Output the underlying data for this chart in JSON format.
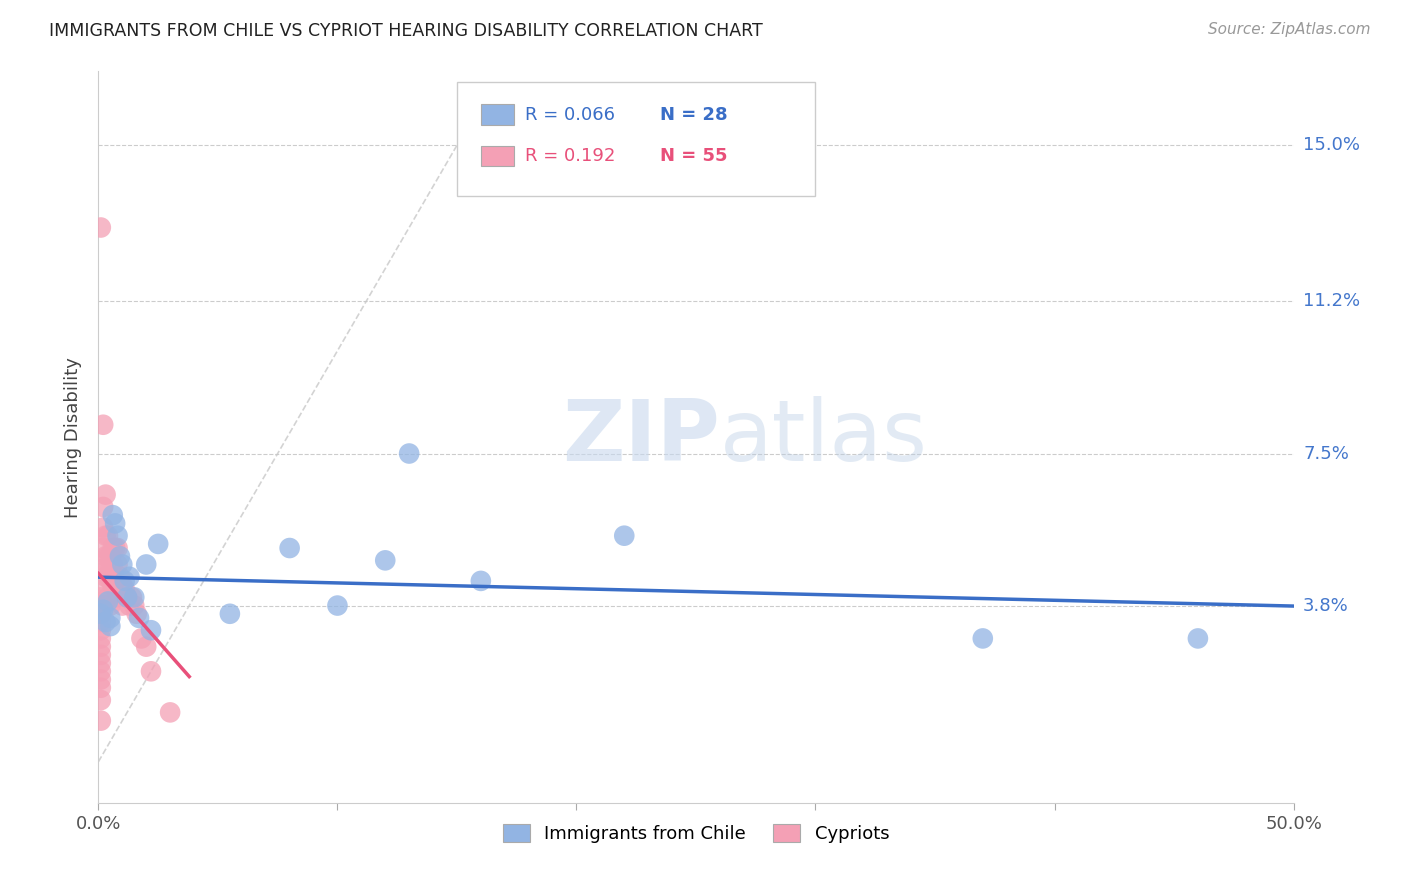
{
  "title": "IMMIGRANTS FROM CHILE VS CYPRIOT HEARING DISABILITY CORRELATION CHART",
  "source": "Source: ZipAtlas.com",
  "ylabel": "Hearing Disability",
  "ytick_labels": [
    "3.8%",
    "7.5%",
    "11.2%",
    "15.0%"
  ],
  "ytick_values": [
    0.038,
    0.075,
    0.112,
    0.15
  ],
  "xlim": [
    0.0,
    0.5
  ],
  "ylim": [
    -0.01,
    0.168
  ],
  "legend1_label": "Immigrants from Chile",
  "legend2_label": "Cypriots",
  "R1": "0.066",
  "N1": "28",
  "R2": "0.192",
  "N2": "55",
  "color_chile": "#92b4e3",
  "color_cyprus": "#f4a0b5",
  "color_chile_line": "#3a6ec7",
  "color_cyprus_line": "#e8507a",
  "color_diagonal": "#c8c8c8",
  "watermark_zip": "ZIP",
  "watermark_atlas": "atlas",
  "chile_x": [
    0.001,
    0.002,
    0.003,
    0.004,
    0.005,
    0.005,
    0.006,
    0.007,
    0.008,
    0.009,
    0.01,
    0.011,
    0.012,
    0.013,
    0.015,
    0.017,
    0.02,
    0.022,
    0.025,
    0.055,
    0.08,
    0.1,
    0.12,
    0.13,
    0.16,
    0.22,
    0.37,
    0.46
  ],
  "chile_y": [
    0.036,
    0.037,
    0.034,
    0.039,
    0.035,
    0.033,
    0.06,
    0.058,
    0.055,
    0.05,
    0.048,
    0.044,
    0.04,
    0.045,
    0.04,
    0.035,
    0.048,
    0.032,
    0.053,
    0.036,
    0.052,
    0.038,
    0.049,
    0.075,
    0.044,
    0.055,
    0.03,
    0.03
  ],
  "cyprus_x": [
    0.001,
    0.001,
    0.001,
    0.001,
    0.001,
    0.001,
    0.001,
    0.001,
    0.001,
    0.001,
    0.001,
    0.001,
    0.001,
    0.001,
    0.001,
    0.002,
    0.002,
    0.002,
    0.002,
    0.002,
    0.002,
    0.002,
    0.003,
    0.003,
    0.003,
    0.003,
    0.004,
    0.004,
    0.004,
    0.004,
    0.005,
    0.005,
    0.005,
    0.005,
    0.006,
    0.006,
    0.006,
    0.007,
    0.007,
    0.008,
    0.008,
    0.008,
    0.009,
    0.01,
    0.01,
    0.011,
    0.012,
    0.013,
    0.014,
    0.015,
    0.016,
    0.018,
    0.02,
    0.022,
    0.03
  ],
  "cyprus_y": [
    0.13,
    0.04,
    0.038,
    0.036,
    0.034,
    0.032,
    0.03,
    0.028,
    0.026,
    0.024,
    0.022,
    0.02,
    0.018,
    0.015,
    0.01,
    0.082,
    0.062,
    0.057,
    0.052,
    0.047,
    0.042,
    0.038,
    0.065,
    0.055,
    0.05,
    0.045,
    0.055,
    0.05,
    0.047,
    0.04,
    0.05,
    0.047,
    0.044,
    0.038,
    0.052,
    0.048,
    0.043,
    0.052,
    0.044,
    0.052,
    0.048,
    0.04,
    0.045,
    0.043,
    0.038,
    0.042,
    0.04,
    0.038,
    0.04,
    0.038,
    0.036,
    0.03,
    0.028,
    0.022,
    0.012
  ]
}
